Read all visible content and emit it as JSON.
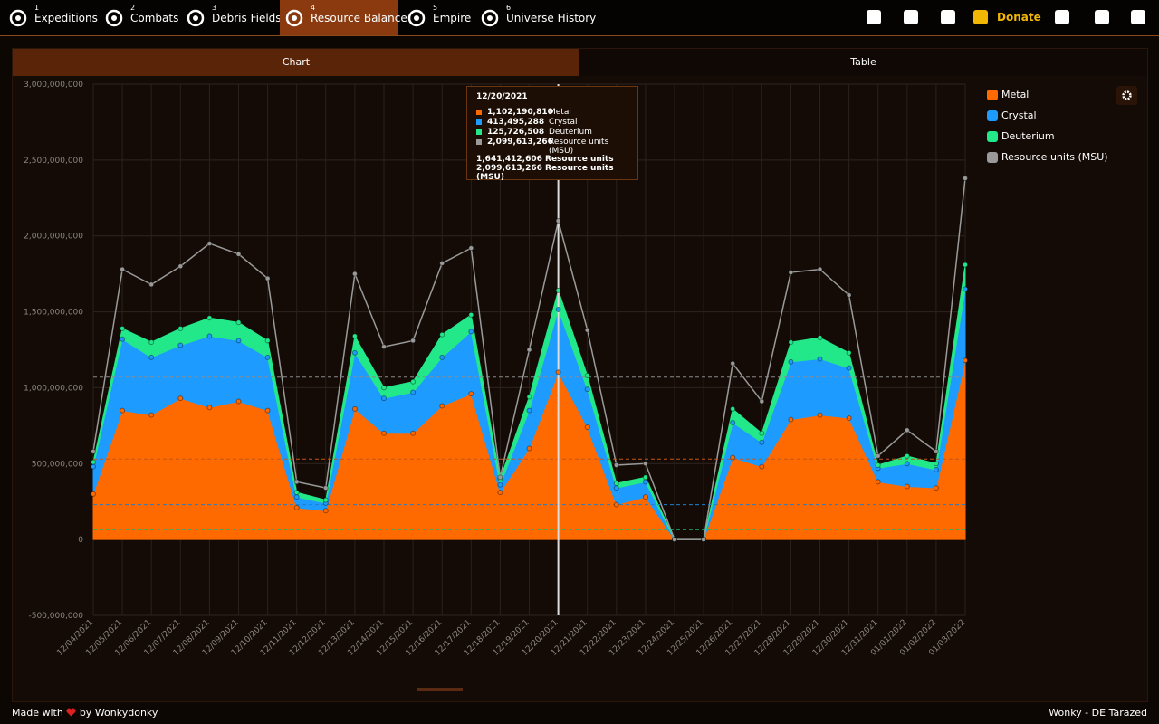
{
  "nav": {
    "items": [
      {
        "number": "1",
        "label": "Expeditions"
      },
      {
        "number": "2",
        "label": "Combats"
      },
      {
        "number": "3",
        "label": "Debris Fields"
      },
      {
        "number": "4",
        "label": "Resource Balance"
      },
      {
        "number": "5",
        "label": "Empire"
      },
      {
        "number": "6",
        "label": "Universe History"
      }
    ],
    "donate": "Donate"
  },
  "tabs": [
    "Chart",
    "Table"
  ],
  "tooltip": {
    "date": "12/20/2021",
    "rows": [
      {
        "value": "1,102,190,810",
        "label": "Metal",
        "color": "#ff6a00"
      },
      {
        "value": "413,495,288",
        "label": "Crystal",
        "color": "#1e9bff"
      },
      {
        "value": "125,726,508",
        "label": "Deuterium",
        "color": "#22e88a"
      },
      {
        "value": "2,099,613,266",
        "label": "Resource units (MSU)",
        "color": "#9a9a9a"
      }
    ],
    "totals": [
      "1,641,412,606 Resource units",
      "2,099,613,266 Resource units (MSU)"
    ]
  },
  "chart_data": {
    "type": "area",
    "categories": [
      "12/04/2021",
      "12/05/2021",
      "12/06/2021",
      "12/07/2021",
      "12/08/2021",
      "12/09/2021",
      "12/10/2021",
      "12/11/2021",
      "12/12/2021",
      "12/13/2021",
      "12/14/2021",
      "12/15/2021",
      "12/16/2021",
      "12/17/2021",
      "12/18/2021",
      "12/19/2021",
      "12/20/2021",
      "12/21/2021",
      "12/22/2021",
      "12/23/2021",
      "12/24/2021",
      "12/25/2021",
      "12/26/2021",
      "12/27/2021",
      "12/28/2021",
      "12/29/2021",
      "12/30/2021",
      "12/31/2021",
      "01/01/2022",
      "01/02/2022",
      "01/03/2022"
    ],
    "series": [
      {
        "name": "Metal",
        "color": "#ff6a00",
        "stacked": true,
        "values": [
          300000000,
          850000000,
          820000000,
          930000000,
          870000000,
          910000000,
          850000000,
          210000000,
          190000000,
          860000000,
          700000000,
          700000000,
          880000000,
          960000000,
          310000000,
          600000000,
          1102190810,
          740000000,
          230000000,
          280000000,
          0,
          0,
          540000000,
          480000000,
          790000000,
          820000000,
          800000000,
          380000000,
          350000000,
          340000000,
          1180000000
        ]
      },
      {
        "name": "Crystal",
        "color": "#1e9bff",
        "stacked": true,
        "values": [
          180000000,
          470000000,
          380000000,
          350000000,
          470000000,
          400000000,
          350000000,
          70000000,
          50000000,
          370000000,
          230000000,
          270000000,
          320000000,
          410000000,
          50000000,
          250000000,
          413495288,
          250000000,
          110000000,
          100000000,
          0,
          0,
          230000000,
          160000000,
          380000000,
          370000000,
          330000000,
          90000000,
          150000000,
          120000000,
          470000000
        ]
      },
      {
        "name": "Deuterium",
        "color": "#22e88a",
        "stacked": true,
        "values": [
          30000000,
          70000000,
          100000000,
          110000000,
          120000000,
          120000000,
          110000000,
          30000000,
          20000000,
          110000000,
          70000000,
          70000000,
          150000000,
          110000000,
          40000000,
          90000000,
          125726508,
          90000000,
          30000000,
          30000000,
          0,
          0,
          90000000,
          60000000,
          130000000,
          140000000,
          100000000,
          20000000,
          50000000,
          40000000,
          160000000
        ]
      },
      {
        "name": "Resource units (MSU)",
        "color": "#9a9a9a",
        "stacked": false,
        "values": [
          580000000,
          1780000000,
          1680000000,
          1800000000,
          1950000000,
          1880000000,
          1720000000,
          380000000,
          340000000,
          1750000000,
          1270000000,
          1310000000,
          1820000000,
          1920000000,
          410000000,
          1250000000,
          2099613266,
          1380000000,
          490000000,
          500000000,
          0,
          0,
          1160000000,
          910000000,
          1760000000,
          1780000000,
          1610000000,
          550000000,
          720000000,
          580000000,
          2380000000
        ]
      }
    ],
    "reference_lines": [
      {
        "value": 1070000000,
        "color": "#8a8a8a"
      },
      {
        "value": 530000000,
        "color": "#c0561a"
      },
      {
        "value": 230000000,
        "color": "#1e7fcc"
      },
      {
        "value": 65000000,
        "color": "#1fb06c"
      }
    ],
    "ylim": [
      -500000000,
      3000000000
    ],
    "yticks": [
      {
        "value": -500000000,
        "label": "-500,000,000"
      },
      0,
      {
        "value": 500000000,
        "label": "500,000,000"
      },
      {
        "value": 1000000000,
        "label": "1,000,000,000"
      },
      {
        "value": 1500000000,
        "label": "1,500,000,000"
      },
      {
        "value": 2000000000,
        "label": "2,000,000,000"
      },
      {
        "value": 2500000000,
        "label": "2,500,000,000"
      },
      {
        "value": 3000000000,
        "label": "3,000,000,000"
      }
    ],
    "grid": true,
    "legend": "right"
  },
  "footer": {
    "left_before": "Made with",
    "left_after": "by Wonkydonky",
    "right": "Wonky - DE Tarazed"
  }
}
